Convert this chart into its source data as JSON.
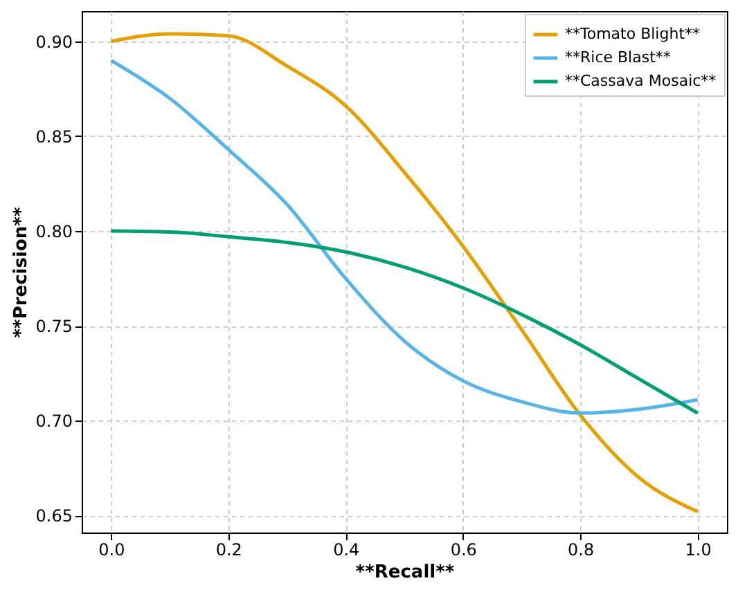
{
  "chart_data": {
    "type": "line",
    "xlabel": "**Recall**",
    "ylabel": "**Precision**",
    "x": [
      0,
      0.1,
      0.2,
      0.3,
      0.4,
      0.5,
      0.6,
      0.7,
      0.8,
      0.9,
      1.0
    ],
    "series": [
      {
        "name": "**Tomato Blight**",
        "color": "#e69f00",
        "values": [
          0.9,
          0.904,
          0.903,
          0.887,
          0.866,
          0.831,
          0.792,
          0.748,
          0.703,
          0.67,
          0.652
        ]
      },
      {
        "name": "**Rice Blast**",
        "color": "#56b4e9",
        "values": [
          0.89,
          0.87,
          0.843,
          0.814,
          0.775,
          0.742,
          0.721,
          0.71,
          0.704,
          0.706,
          0.711
        ]
      },
      {
        "name": "**Cassava Mosaic**",
        "color": "#009e73",
        "values": [
          0.8,
          0.7995,
          0.797,
          0.794,
          0.789,
          0.781,
          0.77,
          0.756,
          0.74,
          0.722,
          0.704
        ]
      }
    ],
    "xlim": [
      -0.05,
      1.05
    ],
    "xticks": [
      {
        "value": 0,
        "label": "0.0"
      },
      {
        "value": 0.2,
        "label": "0.2"
      },
      {
        "value": 0.4,
        "label": "0.4"
      },
      {
        "value": 0.6,
        "label": "0.6"
      },
      {
        "value": 0.8,
        "label": "0.8"
      },
      {
        "value": 1,
        "label": "1.0"
      }
    ],
    "ylim": [
      0.641,
      0.916
    ],
    "yticks": [
      {
        "value": 0.65,
        "label": "0.65"
      },
      {
        "value": 0.7,
        "label": "0.70"
      },
      {
        "value": 0.75,
        "label": "0.75"
      },
      {
        "value": 0.8,
        "label": "0.80"
      },
      {
        "value": 0.85,
        "label": "0.85"
      },
      {
        "value": 0.9,
        "label": "0.90"
      }
    ],
    "grid": true,
    "legend": "top right",
    "line_style": "solid"
  }
}
